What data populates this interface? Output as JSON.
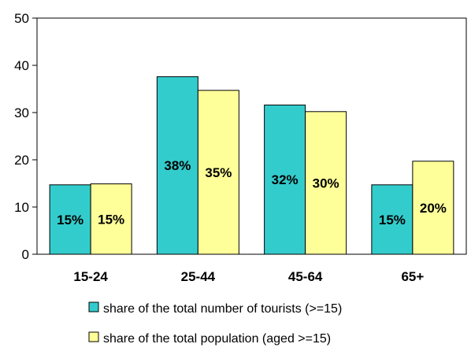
{
  "chart_data": {
    "type": "bar",
    "title": "",
    "xlabel": "",
    "ylabel": "",
    "categories": [
      "15-24",
      "25-44",
      "45-64",
      "65+"
    ],
    "ylim": [
      0,
      50
    ],
    "yticks": [
      0,
      10,
      20,
      30,
      40,
      50
    ],
    "grid": false,
    "legend_position": "bottom",
    "series": [
      {
        "name": "share of the total number of tourists (>=15)",
        "values": [
          14.7,
          37.6,
          31.6,
          14.7
        ],
        "labels": [
          "15%",
          "38%",
          "32%",
          "15%"
        ],
        "color": "#33CCCC"
      },
      {
        "name": "share of the total population (aged >=15)",
        "values": [
          14.9,
          34.7,
          30.2,
          19.7
        ],
        "labels": [
          "15%",
          "35%",
          "30%",
          "20%"
        ],
        "color": "#FFFF99"
      }
    ]
  }
}
